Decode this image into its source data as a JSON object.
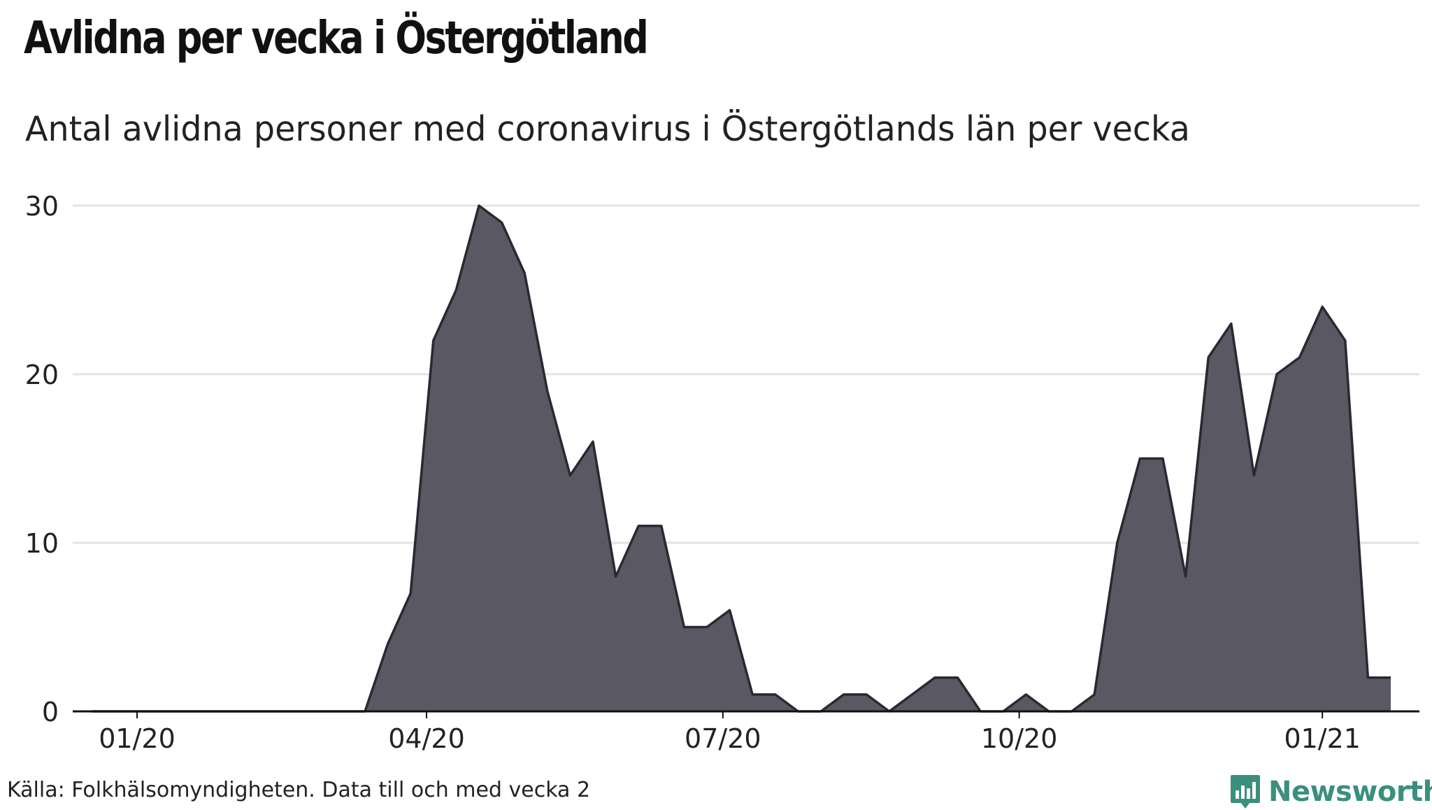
{
  "title": "Avlidna per vecka i Östergötland",
  "subtitle": "Antal avlidna personer med coronavirus i Östergötlands län per vecka",
  "source": "Källa: Folkhälsomyndigheten. Data till och med vecka 2",
  "brand": {
    "name": "Newsworthy",
    "icon": "bar-chart-logo-icon",
    "color": "#3a8f7d"
  },
  "colors": {
    "area_fill": "#5a5862",
    "area_stroke": "#2b2834",
    "grid": "#e3e3e6",
    "axis": "#111111"
  },
  "chart_data": {
    "type": "area",
    "title": "Avlidna per vecka i Östergötland",
    "xlabel": "",
    "ylabel": "",
    "ylim": [
      0,
      30
    ],
    "y_ticks": [
      0,
      10,
      20,
      30
    ],
    "x_ticks": [
      {
        "label": "01/20",
        "week_index": 0
      },
      {
        "label": "04/20",
        "week_index": 12.7
      },
      {
        "label": "07/20",
        "week_index": 25.7
      },
      {
        "label": "10/20",
        "week_index": 38.7
      },
      {
        "label": "01/21",
        "week_index": 52
      }
    ],
    "grid": true,
    "series": [
      {
        "name": "Avlidna",
        "x": [
          -2,
          -1,
          0,
          1,
          2,
          3,
          4,
          5,
          6,
          7,
          8,
          9,
          10,
          11,
          12,
          13,
          14,
          15,
          16,
          17,
          18,
          19,
          20,
          21,
          22,
          23,
          24,
          25,
          26,
          27,
          28,
          29,
          30,
          31,
          32,
          33,
          34,
          35,
          36,
          37,
          38,
          39,
          40,
          41,
          42,
          43,
          44,
          45,
          46,
          47,
          48,
          49,
          50,
          51,
          52,
          53,
          54,
          55
        ],
        "values": [
          0,
          0,
          0,
          0,
          0,
          0,
          0,
          0,
          0,
          0,
          0,
          0,
          0,
          4,
          7,
          22,
          25,
          30,
          29,
          26,
          19,
          14,
          16,
          8,
          11,
          11,
          5,
          5,
          6,
          1,
          1,
          0,
          0,
          1,
          1,
          0,
          1,
          2,
          2,
          0,
          0,
          1,
          0,
          0,
          1,
          10,
          15,
          15,
          8,
          21,
          23,
          14,
          20,
          21,
          24,
          22,
          2,
          2
        ]
      }
    ]
  }
}
